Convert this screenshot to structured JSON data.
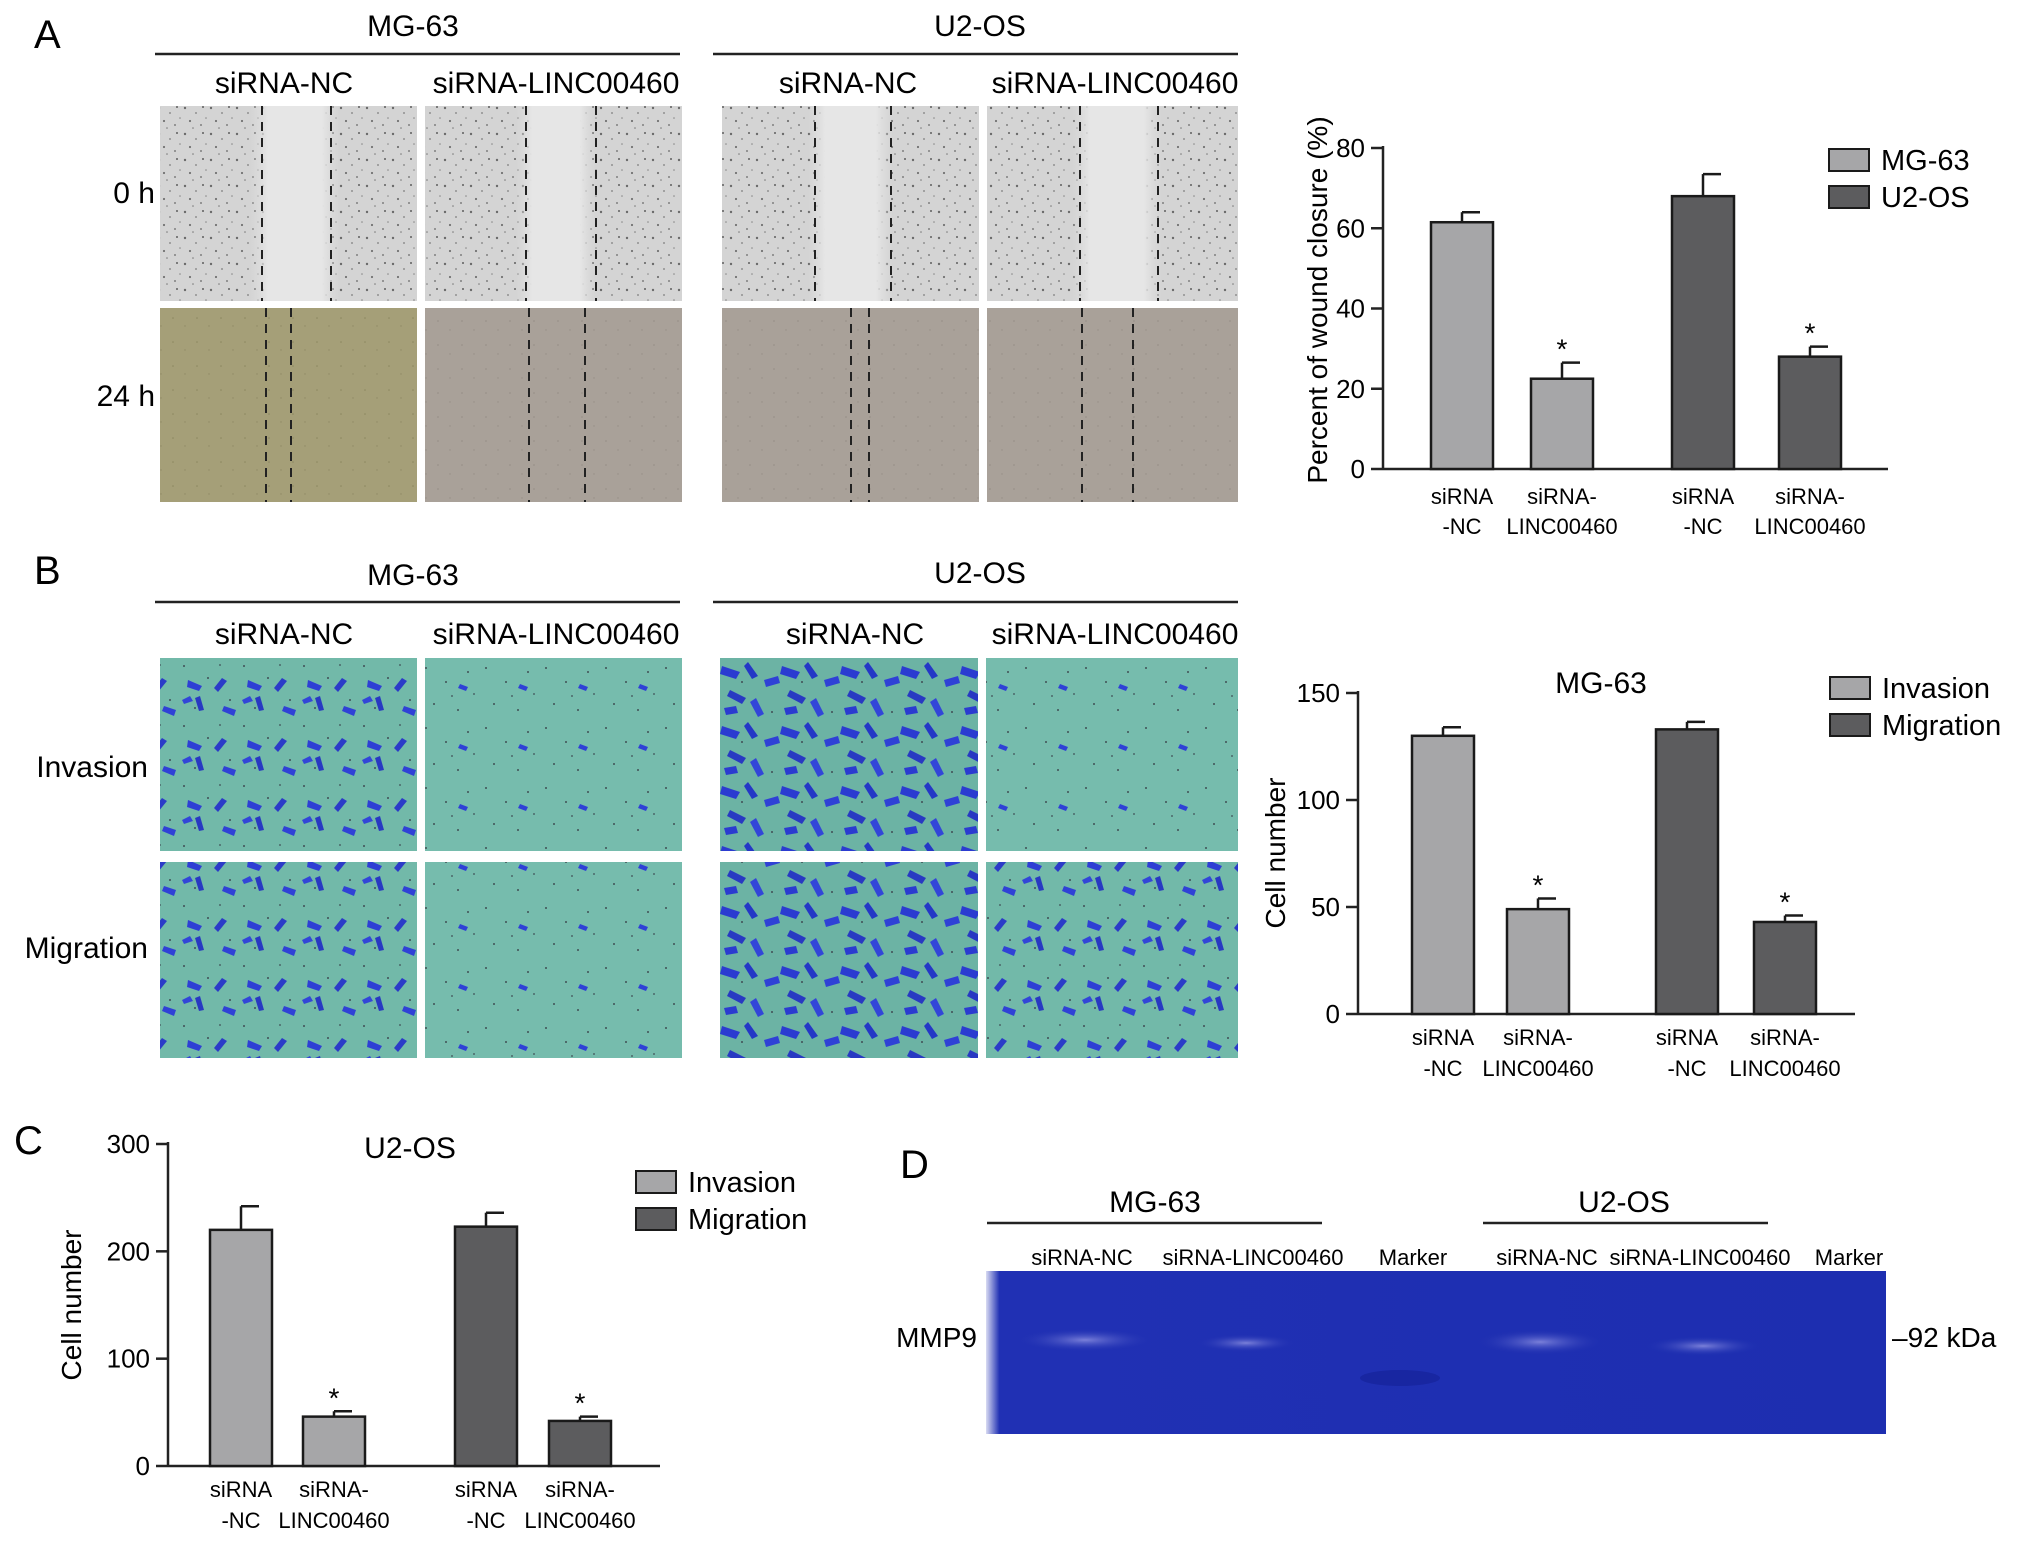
{
  "panels": {
    "A": {
      "letter": "A",
      "cell_lines": [
        "MG-63",
        "U2-OS"
      ],
      "conditions": [
        "siRNA-NC",
        "siRNA-LINC00460"
      ],
      "row_labels": [
        "0 h",
        "24 h"
      ]
    },
    "B": {
      "letter": "B",
      "cell_lines": [
        "MG-63",
        "U2-OS"
      ],
      "conditions": [
        "siRNA-NC",
        "siRNA-LINC00460"
      ],
      "row_labels": [
        "Invasion",
        "Migration"
      ]
    },
    "C": {
      "letter": "C"
    },
    "D": {
      "letter": "D",
      "cell_lines": [
        "MG-63",
        "U2-OS"
      ],
      "lanes": [
        "siRNA-NC",
        "siRNA-LINC00460",
        "Marker",
        "siRNA-NC",
        "siRNA-LINC00460",
        "Marker"
      ],
      "row_label": "MMP9",
      "size_marker": "–92 kDa"
    }
  },
  "colors": {
    "series_light": "#a6a6a8",
    "series_dark": "#5c5c5e",
    "crystal_violet": "#2b3fd0",
    "transwell_bg": "#6fb7a7",
    "scratch_0h": "#dcdcdc",
    "scratch_24h_olive": "#a8a27a",
    "scratch_24h_grey": "#aba39b",
    "gel_blue": "#1e2fb0"
  },
  "chart_data": [
    {
      "id": "wound",
      "type": "bar",
      "title": "",
      "ylabel": "Percent of wound closure (%)",
      "ylim": [
        0,
        80
      ],
      "yticks": [
        0,
        20,
        40,
        60,
        80
      ],
      "legend_position": "top-right",
      "series_names": [
        "MG-63",
        "U2-OS"
      ],
      "groups": [
        {
          "series": 0,
          "bars": [
            {
              "label": [
                "siRNA",
                "-NC"
              ],
              "value": 61.5,
              "error": 2.5,
              "star": false
            },
            {
              "label": [
                "siRNA-",
                "LINC00460"
              ],
              "value": 22.5,
              "error": 4,
              "star": true
            }
          ]
        },
        {
          "series": 1,
          "bars": [
            {
              "label": [
                "siRNA",
                "-NC"
              ],
              "value": 68,
              "error": 5.5,
              "star": false
            },
            {
              "label": [
                "siRNA-",
                "LINC00460"
              ],
              "value": 28,
              "error": 2.5,
              "star": true
            }
          ]
        }
      ]
    },
    {
      "id": "mg63",
      "type": "bar",
      "title": "MG-63",
      "ylabel": "Cell number",
      "ylim": [
        0,
        150
      ],
      "yticks": [
        0,
        50,
        100,
        150
      ],
      "legend_position": "top-right",
      "series_names": [
        "Invasion",
        "Migration"
      ],
      "groups": [
        {
          "series": 0,
          "bars": [
            {
              "label": [
                "siRNA",
                "-NC"
              ],
              "value": 130,
              "error": 4,
              "star": false
            },
            {
              "label": [
                "siRNA-",
                "LINC00460"
              ],
              "value": 49,
              "error": 5,
              "star": true
            }
          ]
        },
        {
          "series": 1,
          "bars": [
            {
              "label": [
                "siRNA",
                "-NC"
              ],
              "value": 133,
              "error": 3.5,
              "star": false
            },
            {
              "label": [
                "siRNA-",
                "LINC00460"
              ],
              "value": 43,
              "error": 3,
              "star": true
            }
          ]
        }
      ]
    },
    {
      "id": "u2os",
      "type": "bar",
      "title": "U2-OS",
      "ylabel": "Cell number",
      "ylim": [
        0,
        300
      ],
      "yticks": [
        0,
        100,
        200,
        300
      ],
      "legend_position": "top-right",
      "series_names": [
        "Invasion",
        "Migration"
      ],
      "groups": [
        {
          "series": 0,
          "bars": [
            {
              "label": [
                "siRNA",
                "-NC"
              ],
              "value": 220,
              "error": 22,
              "star": false
            },
            {
              "label": [
                "siRNA-",
                "LINC00460"
              ],
              "value": 46,
              "error": 5,
              "star": true
            }
          ]
        },
        {
          "series": 1,
          "bars": [
            {
              "label": [
                "siRNA",
                "-NC"
              ],
              "value": 223,
              "error": 13,
              "star": false
            },
            {
              "label": [
                "siRNA-",
                "LINC00460"
              ],
              "value": 42,
              "error": 4,
              "star": true
            }
          ]
        }
      ]
    }
  ]
}
